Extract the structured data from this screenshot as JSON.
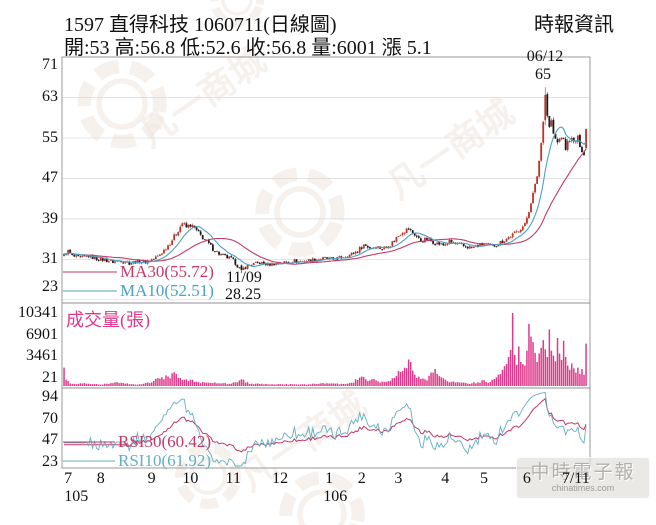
{
  "header": {
    "title": "1597  直得科技 1060711(日線圖)",
    "source": "時報資訊",
    "quote": "開:53 高:56.8 低:52.6 收:56.8 量:6001 漲 5.1"
  },
  "chart_data": [
    {
      "type": "candlestick",
      "panel": "price",
      "ylim": [
        23,
        71
      ],
      "yticks": [
        71,
        63,
        55,
        47,
        39,
        31,
        23
      ],
      "up_color": "#c03228",
      "down_color": "#1b1b1b",
      "ma": [
        {
          "name": "MA30",
          "label": "MA30(55.72)",
          "period": 30,
          "color": "#c23a68"
        },
        {
          "name": "MA10",
          "label": "MA10(52.51)",
          "period": 10,
          "color": "#4aa2c2"
        }
      ],
      "annotations": [
        {
          "date": "06/12",
          "price": "65",
          "day": 236
        },
        {
          "date": "11/09",
          "price": "28.25",
          "day": 87
        }
      ],
      "close_anchors": [
        [
          0,
          31.8
        ],
        [
          2,
          32.6
        ],
        [
          4,
          31.6
        ],
        [
          8,
          31.2
        ],
        [
          12,
          31.7
        ],
        [
          16,
          31.1
        ],
        [
          20,
          30.9
        ],
        [
          24,
          30.5
        ],
        [
          28,
          30.8
        ],
        [
          32,
          30.3
        ],
        [
          36,
          30.6
        ],
        [
          40,
          30.5
        ],
        [
          43,
          30.9
        ],
        [
          46,
          31.6
        ],
        [
          49,
          32.8
        ],
        [
          52,
          34.3
        ],
        [
          55,
          36.1
        ],
        [
          58,
          38.2
        ],
        [
          60,
          37.3
        ],
        [
          62,
          37.8
        ],
        [
          64,
          37.1
        ],
        [
          67,
          35.7
        ],
        [
          70,
          34.5
        ],
        [
          73,
          33.1
        ],
        [
          76,
          32.1
        ],
        [
          79,
          31.5
        ],
        [
          82,
          31.1
        ],
        [
          84,
          30.3
        ],
        [
          86,
          29.2
        ],
        [
          87,
          28.9
        ],
        [
          89,
          29.5
        ],
        [
          92,
          30.0
        ],
        [
          96,
          30.3
        ],
        [
          100,
          30.0
        ],
        [
          104,
          30.2
        ],
        [
          108,
          30.4
        ],
        [
          112,
          30.7
        ],
        [
          116,
          30.5
        ],
        [
          120,
          30.8
        ],
        [
          124,
          31.0
        ],
        [
          128,
          31.2
        ],
        [
          132,
          31.0
        ],
        [
          136,
          31.4
        ],
        [
          140,
          31.8
        ],
        [
          144,
          32.7
        ],
        [
          147,
          33.9
        ],
        [
          150,
          33.3
        ],
        [
          153,
          33.6
        ],
        [
          156,
          33.1
        ],
        [
          160,
          33.9
        ],
        [
          163,
          35.3
        ],
        [
          166,
          36.5
        ],
        [
          169,
          37.0
        ],
        [
          172,
          35.9
        ],
        [
          175,
          34.6
        ],
        [
          178,
          35.0
        ],
        [
          182,
          34.3
        ],
        [
          186,
          33.8
        ],
        [
          189,
          34.5
        ],
        [
          192,
          34.0
        ],
        [
          196,
          33.6
        ],
        [
          200,
          33.3
        ],
        [
          203,
          33.7
        ],
        [
          206,
          34.1
        ],
        [
          209,
          33.6
        ],
        [
          212,
          33.9
        ],
        [
          215,
          34.6
        ],
        [
          218,
          35.3
        ],
        [
          221,
          36.1
        ],
        [
          224,
          37.0
        ],
        [
          226,
          38.0
        ],
        [
          228,
          40.5
        ],
        [
          230,
          44.0
        ],
        [
          232,
          47.5
        ],
        [
          233,
          50.5
        ],
        [
          234,
          54.0
        ],
        [
          235,
          58.5
        ],
        [
          236,
          63.5
        ],
        [
          237,
          59.5
        ],
        [
          238,
          57.0
        ],
        [
          239,
          58.5
        ],
        [
          240,
          55.5
        ],
        [
          242,
          54.0
        ],
        [
          244,
          55.5
        ],
        [
          246,
          53.0
        ],
        [
          248,
          55.0
        ],
        [
          250,
          54.0
        ],
        [
          252,
          54.8
        ],
        [
          253,
          53.8
        ],
        [
          254,
          52.8
        ],
        [
          255,
          51.7
        ],
        [
          256,
          56.8
        ]
      ],
      "overrides": {
        "87": [
          29.8,
          30.0,
          28.25,
          28.9
        ],
        "236": [
          58.5,
          65.0,
          57.5,
          63.5
        ],
        "256": [
          53.0,
          56.8,
          52.6,
          56.8
        ]
      }
    },
    {
      "type": "bar",
      "panel": "volume",
      "title": "成交量(張)",
      "yticks": [
        10341,
        6901,
        3461,
        21
      ],
      "color": "#de3a8c",
      "volume_anchors": [
        [
          0,
          2600
        ],
        [
          1,
          900
        ],
        [
          3,
          350
        ],
        [
          6,
          260
        ],
        [
          10,
          420
        ],
        [
          14,
          260
        ],
        [
          18,
          210
        ],
        [
          22,
          300
        ],
        [
          26,
          560
        ],
        [
          30,
          320
        ],
        [
          34,
          260
        ],
        [
          38,
          240
        ],
        [
          41,
          500
        ],
        [
          44,
          700
        ],
        [
          47,
          1050
        ],
        [
          50,
          1500
        ],
        [
          52,
          1100
        ],
        [
          54,
          1950
        ],
        [
          56,
          1150
        ],
        [
          58,
          850
        ],
        [
          60,
          950
        ],
        [
          62,
          900
        ],
        [
          65,
          620
        ],
        [
          69,
          500
        ],
        [
          73,
          420
        ],
        [
          77,
          360
        ],
        [
          81,
          320
        ],
        [
          84,
          520
        ],
        [
          86,
          780
        ],
        [
          87,
          950
        ],
        [
          89,
          480
        ],
        [
          92,
          340
        ],
        [
          96,
          280
        ],
        [
          100,
          240
        ],
        [
          104,
          220
        ],
        [
          108,
          210
        ],
        [
          112,
          260
        ],
        [
          116,
          230
        ],
        [
          120,
          240
        ],
        [
          124,
          280
        ],
        [
          128,
          330
        ],
        [
          132,
          360
        ],
        [
          136,
          310
        ],
        [
          140,
          420
        ],
        [
          144,
          850
        ],
        [
          146,
          1350
        ],
        [
          148,
          950
        ],
        [
          150,
          800
        ],
        [
          152,
          1000
        ],
        [
          154,
          650
        ],
        [
          157,
          600
        ],
        [
          160,
          750
        ],
        [
          162,
          1150
        ],
        [
          165,
          2000
        ],
        [
          167,
          2600
        ],
        [
          169,
          3750
        ],
        [
          170,
          3400
        ],
        [
          172,
          1600
        ],
        [
          175,
          1000
        ],
        [
          178,
          800
        ],
        [
          180,
          1900
        ],
        [
          182,
          2400
        ],
        [
          184,
          1400
        ],
        [
          187,
          900
        ],
        [
          190,
          600
        ],
        [
          194,
          480
        ],
        [
          197,
          420
        ],
        [
          200,
          380
        ],
        [
          203,
          520
        ],
        [
          206,
          820
        ],
        [
          209,
          560
        ],
        [
          211,
          1000
        ],
        [
          213,
          1600
        ],
        [
          215,
          2300
        ],
        [
          217,
          3100
        ],
        [
          219,
          5100
        ],
        [
          220,
          10341
        ],
        [
          221,
          4400
        ],
        [
          222,
          3000
        ],
        [
          223,
          5600
        ],
        [
          224,
          3400
        ],
        [
          225,
          3100
        ],
        [
          226,
          2900
        ],
        [
          227,
          5000
        ],
        [
          228,
          8800
        ],
        [
          229,
          7000
        ],
        [
          230,
          6200
        ],
        [
          231,
          4700
        ],
        [
          232,
          3400
        ],
        [
          233,
          4600
        ],
        [
          234,
          5400
        ],
        [
          235,
          6500
        ],
        [
          236,
          5200
        ],
        [
          237,
          4100
        ],
        [
          238,
          8000
        ],
        [
          239,
          5000
        ],
        [
          240,
          4300
        ],
        [
          241,
          3500
        ],
        [
          242,
          6800
        ],
        [
          243,
          4600
        ],
        [
          244,
          3700
        ],
        [
          245,
          6400
        ],
        [
          246,
          4100
        ],
        [
          247,
          2900
        ],
        [
          248,
          2300
        ],
        [
          249,
          3200
        ],
        [
          250,
          2500
        ],
        [
          251,
          1900
        ],
        [
          252,
          2600
        ],
        [
          253,
          1700
        ],
        [
          254,
          2400
        ],
        [
          255,
          1600
        ],
        [
          256,
          6001
        ]
      ]
    },
    {
      "type": "line",
      "panel": "rsi",
      "yticks": [
        94,
        70,
        47,
        23
      ],
      "series": [
        {
          "name": "RSI30",
          "label": "RSI30(60.42)",
          "period": 30,
          "color": "#c23a68"
        },
        {
          "name": "RSI10",
          "label": "RSI10(61.92)",
          "period": 10,
          "color": "#63afc3"
        }
      ]
    }
  ],
  "xaxis": {
    "months": [
      {
        "label": "7",
        "day": 2
      },
      {
        "label": "8",
        "day": 18
      },
      {
        "label": "9",
        "day": 43
      },
      {
        "label": "10",
        "day": 62
      },
      {
        "label": "11",
        "day": 83
      },
      {
        "label": "12",
        "day": 106
      },
      {
        "label": "1",
        "day": 130
      },
      {
        "label": "2",
        "day": 146
      },
      {
        "label": "3",
        "day": 164
      },
      {
        "label": "4",
        "day": 187
      },
      {
        "label": "5",
        "day": 206
      },
      {
        "label": "6",
        "day": 227
      },
      {
        "label": "7/11",
        "day": 251
      }
    ],
    "years": [
      {
        "label": "105",
        "day": 6
      },
      {
        "label": "106",
        "day": 133
      }
    ]
  },
  "watermark": {
    "text": "凡一商城",
    "badge": {
      "line1": "中時電子報",
      "line2": "chinatimes.com"
    }
  },
  "colors": {
    "grid": "#d8d8d8",
    "frame": "#909090",
    "watermark": "#efe5dd",
    "text": "#111111"
  }
}
